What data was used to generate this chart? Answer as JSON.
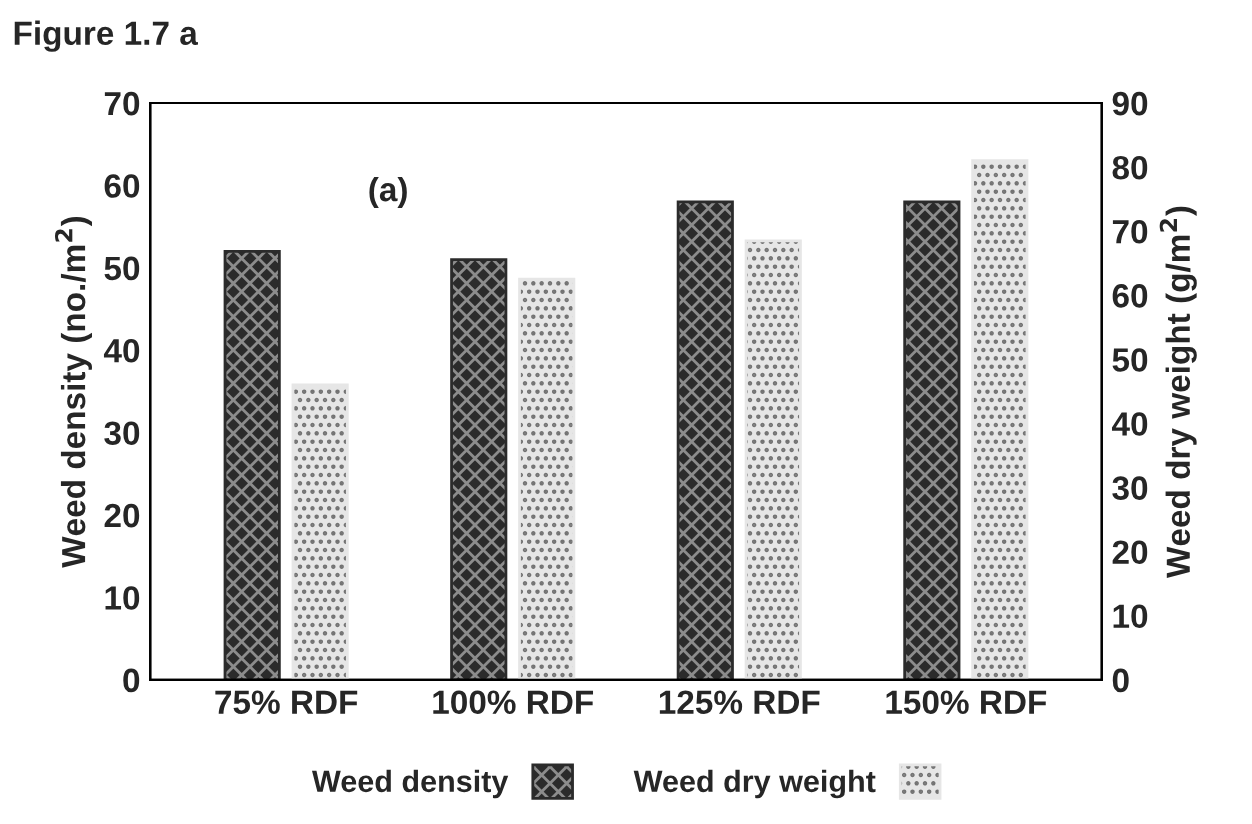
{
  "chart_data": {
    "type": "bar",
    "title": "Figure 1.7 a",
    "ylabel": "Weed density (no./m$^{2}$)",
    "y2label": "Weed dry weight (g/m$^{2}$)",
    "annotations": [
      "(a)"
    ],
    "categories": [
      "75% RDF",
      "100% RDF",
      "125% RDF",
      "150% RDF"
    ],
    "series": [
      {
        "name": "Weed density",
        "color": "#2b2b2b",
        "values": [
          52,
          51,
          58,
          58
        ]
      },
      {
        "name": "Weed dry weight",
        "color": "#e6e6e6",
        "values": [
          46,
          62.5,
          68.5,
          81
        ],
        "axis": "y2"
      }
    ],
    "ylim": [
      0,
      70
    ],
    "yticks": [
      0,
      10,
      20,
      30,
      40,
      50,
      60,
      70
    ],
    "y2lim": [
      0,
      90
    ],
    "y2ticks": [
      0,
      10,
      20,
      30,
      40,
      50,
      60,
      70,
      80,
      90
    ],
    "grid": false,
    "legend": "bottom"
  }
}
